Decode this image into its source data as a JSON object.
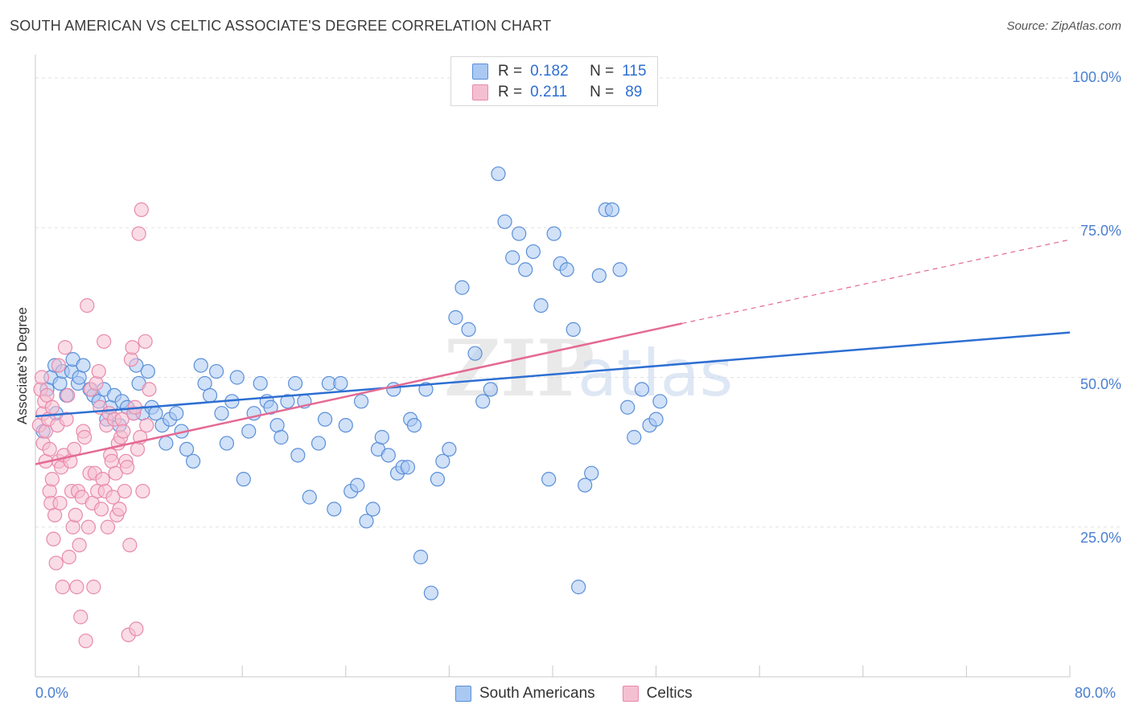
{
  "header": {
    "title": "SOUTH AMERICAN VS CELTIC ASSOCIATE'S DEGREE CORRELATION CHART",
    "source": "Source: ZipAtlas.com"
  },
  "legend": {
    "r_label": "R =",
    "n_label": "N =",
    "rows": [
      {
        "r": "0.182",
        "n": "115"
      },
      {
        "r": "0.211",
        "n": "89"
      }
    ]
  },
  "colors": {
    "blue_fill": "#a9c8f2",
    "blue_stroke": "#5b8fd8",
    "blue_line": "#2d6fd2",
    "pink_fill": "#f5bfd2",
    "pink_stroke": "#e88aab",
    "pink_line": "#e46a94",
    "axis_text": "#4a7fd1"
  },
  "watermark": {
    "zip": "ZIP",
    "atlas": "atlas"
  },
  "chart_data": {
    "type": "scatter",
    "ylabel": "Associate's Degree",
    "xlim": [
      0,
      80
    ],
    "ylim": [
      0,
      105
    ],
    "x_ticks": [
      "0.0%",
      "80.0%"
    ],
    "y_ticks": [
      {
        "v": 100,
        "label": "100.0%"
      },
      {
        "v": 75,
        "label": "75.0%"
      },
      {
        "v": 50,
        "label": "50.0%"
      },
      {
        "v": 25,
        "label": "25.0%"
      }
    ],
    "series": [
      {
        "name": "South Americans",
        "color": "blue",
        "points": [
          [
            0.6,
            41
          ],
          [
            0.9,
            48
          ],
          [
            1.2,
            50
          ],
          [
            1.5,
            52
          ],
          [
            1.6,
            44
          ],
          [
            1.9,
            49
          ],
          [
            2.1,
            51
          ],
          [
            2.4,
            47
          ],
          [
            2.8,
            51
          ],
          [
            2.9,
            53
          ],
          [
            3.3,
            49
          ],
          [
            3.4,
            50
          ],
          [
            3.7,
            52
          ],
          [
            4.2,
            48
          ],
          [
            4.5,
            47
          ],
          [
            4.9,
            46
          ],
          [
            5.3,
            48
          ],
          [
            5.5,
            43
          ],
          [
            5.8,
            45
          ],
          [
            6.1,
            47
          ],
          [
            6.5,
            42
          ],
          [
            6.7,
            46
          ],
          [
            7.1,
            45
          ],
          [
            7.6,
            44
          ],
          [
            7.8,
            52
          ],
          [
            8.0,
            49
          ],
          [
            8.3,
            44
          ],
          [
            8.7,
            51
          ],
          [
            9.0,
            45
          ],
          [
            9.3,
            44
          ],
          [
            9.8,
            42
          ],
          [
            10.1,
            39
          ],
          [
            10.4,
            43
          ],
          [
            10.9,
            44
          ],
          [
            11.3,
            41
          ],
          [
            11.7,
            38
          ],
          [
            12.2,
            36
          ],
          [
            12.8,
            52
          ],
          [
            13.1,
            49
          ],
          [
            13.5,
            47
          ],
          [
            14.0,
            51
          ],
          [
            14.4,
            44
          ],
          [
            14.8,
            39
          ],
          [
            15.2,
            46
          ],
          [
            15.6,
            50
          ],
          [
            16.1,
            33
          ],
          [
            16.5,
            41
          ],
          [
            16.9,
            44
          ],
          [
            17.4,
            49
          ],
          [
            17.9,
            46
          ],
          [
            18.2,
            45
          ],
          [
            18.7,
            42
          ],
          [
            19.0,
            40
          ],
          [
            19.5,
            46
          ],
          [
            20.1,
            49
          ],
          [
            20.3,
            37
          ],
          [
            20.8,
            46
          ],
          [
            21.2,
            30
          ],
          [
            21.9,
            39
          ],
          [
            22.4,
            43
          ],
          [
            22.7,
            49
          ],
          [
            23.1,
            28
          ],
          [
            23.6,
            49
          ],
          [
            24.0,
            42
          ],
          [
            24.4,
            31
          ],
          [
            24.9,
            32
          ],
          [
            25.2,
            46
          ],
          [
            25.6,
            26
          ],
          [
            26.1,
            28
          ],
          [
            26.5,
            38
          ],
          [
            26.8,
            40
          ],
          [
            27.3,
            37
          ],
          [
            27.7,
            48
          ],
          [
            28.0,
            34
          ],
          [
            28.4,
            35
          ],
          [
            28.8,
            35
          ],
          [
            29.0,
            43
          ],
          [
            29.3,
            42
          ],
          [
            29.8,
            20
          ],
          [
            30.2,
            48
          ],
          [
            30.6,
            14
          ],
          [
            31.1,
            33
          ],
          [
            31.5,
            36
          ],
          [
            32.0,
            38
          ],
          [
            32.5,
            60
          ],
          [
            33.0,
            65
          ],
          [
            33.5,
            58
          ],
          [
            34.0,
            54
          ],
          [
            34.6,
            46
          ],
          [
            35.2,
            48
          ],
          [
            35.8,
            84
          ],
          [
            36.3,
            76
          ],
          [
            36.9,
            70
          ],
          [
            37.4,
            74
          ],
          [
            37.9,
            68
          ],
          [
            38.5,
            71
          ],
          [
            39.1,
            62
          ],
          [
            39.7,
            33
          ],
          [
            40.1,
            74
          ],
          [
            40.6,
            69
          ],
          [
            41.1,
            68
          ],
          [
            41.6,
            58
          ],
          [
            42.0,
            15
          ],
          [
            42.5,
            32
          ],
          [
            43.0,
            34
          ],
          [
            43.6,
            67
          ],
          [
            44.1,
            78
          ],
          [
            44.6,
            78
          ],
          [
            45.2,
            68
          ],
          [
            45.8,
            45
          ],
          [
            46.3,
            40
          ],
          [
            46.9,
            48
          ],
          [
            47.5,
            42
          ],
          [
            48.0,
            43
          ],
          [
            48.3,
            46
          ]
        ]
      },
      {
        "name": "Celtics",
        "color": "pink",
        "points": [
          [
            0.3,
            42
          ],
          [
            0.4,
            48
          ],
          [
            0.5,
            50
          ],
          [
            0.6,
            39
          ],
          [
            0.6,
            44
          ],
          [
            0.7,
            46
          ],
          [
            0.8,
            41
          ],
          [
            0.8,
            36
          ],
          [
            0.9,
            47
          ],
          [
            1.0,
            43
          ],
          [
            1.1,
            31
          ],
          [
            1.1,
            38
          ],
          [
            1.2,
            29
          ],
          [
            1.3,
            45
          ],
          [
            1.3,
            33
          ],
          [
            1.4,
            23
          ],
          [
            1.5,
            27
          ],
          [
            1.6,
            19
          ],
          [
            1.7,
            42
          ],
          [
            1.8,
            36
          ],
          [
            1.8,
            52
          ],
          [
            1.9,
            29
          ],
          [
            2.0,
            35
          ],
          [
            2.1,
            15
          ],
          [
            2.2,
            37
          ],
          [
            2.3,
            55
          ],
          [
            2.4,
            43
          ],
          [
            2.5,
            47
          ],
          [
            2.6,
            20
          ],
          [
            2.7,
            36
          ],
          [
            2.8,
            31
          ],
          [
            2.9,
            25
          ],
          [
            3.0,
            38
          ],
          [
            3.1,
            27
          ],
          [
            3.2,
            15
          ],
          [
            3.3,
            31
          ],
          [
            3.4,
            22
          ],
          [
            3.5,
            10
          ],
          [
            3.6,
            30
          ],
          [
            3.7,
            41
          ],
          [
            3.8,
            40
          ],
          [
            3.9,
            6
          ],
          [
            4.0,
            62
          ],
          [
            4.1,
            25
          ],
          [
            4.2,
            34
          ],
          [
            4.3,
            48
          ],
          [
            4.4,
            29
          ],
          [
            4.5,
            15
          ],
          [
            4.6,
            34
          ],
          [
            4.7,
            49
          ],
          [
            4.8,
            31
          ],
          [
            4.9,
            51
          ],
          [
            5.0,
            45
          ],
          [
            5.1,
            28
          ],
          [
            5.2,
            33
          ],
          [
            5.3,
            56
          ],
          [
            5.4,
            31
          ],
          [
            5.5,
            42
          ],
          [
            5.6,
            25
          ],
          [
            5.7,
            44
          ],
          [
            5.8,
            37
          ],
          [
            5.9,
            36
          ],
          [
            6.0,
            30
          ],
          [
            6.1,
            43
          ],
          [
            6.2,
            34
          ],
          [
            6.3,
            27
          ],
          [
            6.4,
            39
          ],
          [
            6.5,
            28
          ],
          [
            6.6,
            40
          ],
          [
            6.7,
            43
          ],
          [
            6.8,
            41
          ],
          [
            6.9,
            31
          ],
          [
            7.0,
            36
          ],
          [
            7.1,
            35
          ],
          [
            7.2,
            7
          ],
          [
            7.3,
            22
          ],
          [
            7.4,
            53
          ],
          [
            7.5,
            55
          ],
          [
            7.6,
            44
          ],
          [
            7.7,
            45
          ],
          [
            7.8,
            8
          ],
          [
            7.9,
            38
          ],
          [
            8.0,
            74
          ],
          [
            8.1,
            40
          ],
          [
            8.2,
            78
          ],
          [
            8.3,
            31
          ],
          [
            8.5,
            56
          ],
          [
            8.6,
            42
          ],
          [
            8.8,
            48
          ]
        ]
      }
    ],
    "trend_lines": [
      {
        "series": "South Americans",
        "x": [
          0,
          80
        ],
        "y": [
          43.5,
          57.5
        ],
        "style": "solid"
      },
      {
        "series": "Celtics",
        "x": [
          0,
          50
        ],
        "y": [
          35.5,
          59
        ],
        "style": "solid",
        "extended": {
          "x": [
            50,
            80
          ],
          "y": [
            59,
            73
          ]
        }
      }
    ]
  },
  "bottom_legend": [
    {
      "label": "South Americans",
      "color": "blue"
    },
    {
      "label": "Celtics",
      "color": "pink"
    }
  ]
}
